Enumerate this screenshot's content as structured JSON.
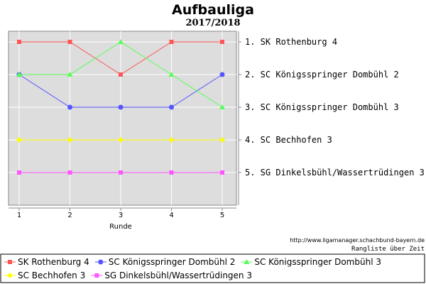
{
  "chart_data": {
    "type": "line",
    "title": "Aufbauliga",
    "subtitle": "2017/2018",
    "xlabel": "Runde",
    "x": [
      1,
      2,
      3,
      4,
      5
    ],
    "y_axis": "rank",
    "ylim": [
      1,
      5
    ],
    "inverted_y": true,
    "grid": true,
    "legend_position": "bottom",
    "series": [
      {
        "name": "SK Rothenburg 4",
        "values": [
          1,
          1,
          2,
          1,
          1
        ],
        "color": "#ff5555",
        "marker": "square"
      },
      {
        "name": "SC Königsspringer Dombühl 2",
        "values": [
          2,
          3,
          3,
          3,
          2
        ],
        "color": "#5555ff",
        "marker": "circle"
      },
      {
        "name": "SC Königsspringer Dombühl 3",
        "values": [
          2,
          2,
          1,
          2,
          3
        ],
        "color": "#55ff55",
        "marker": "triangle"
      },
      {
        "name": "SC Bechhofen 3",
        "values": [
          4,
          4,
          4,
          4,
          4
        ],
        "color": "#ffff00",
        "marker": "diamond"
      },
      {
        "name": "SG Dinkelsbühl/Wassertrüdingen 3",
        "values": [
          5,
          5,
          5,
          5,
          5
        ],
        "color": "#ff55ff",
        "marker": "square"
      }
    ],
    "final_standings": [
      "1. SK Rothenburg 4",
      "2. SC Königsspringer Dombühl 2",
      "3. SC Königsspringer Dombühl 3",
      "4. SC Bechhofen 3",
      "5. SG Dinkelsbühl/Wassertrüdingen 3"
    ],
    "source": "http://www.ligamanager.schachbund-bayern.de",
    "note": "Rangliste über Zeit"
  },
  "colors": {
    "plot_background": "#dddddd",
    "grid": "#ffffff"
  }
}
